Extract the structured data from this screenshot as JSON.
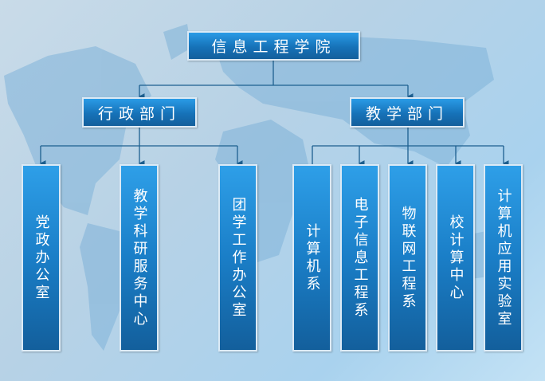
{
  "root": {
    "label": "信息工程学院"
  },
  "departments": [
    {
      "label": "行政部门",
      "units": [
        "党政办公室",
        "教学科研服务中心",
        "团学工作办公室"
      ]
    },
    {
      "label": "教学部门",
      "units": [
        "计算机系",
        "电子信息工程系",
        "物联网工程系",
        "校计算中心",
        "计算机应用实验室"
      ]
    }
  ],
  "colors": {
    "box": "#1a7ec7",
    "line": "#1d5f8f",
    "background": "#b7d2e6"
  }
}
